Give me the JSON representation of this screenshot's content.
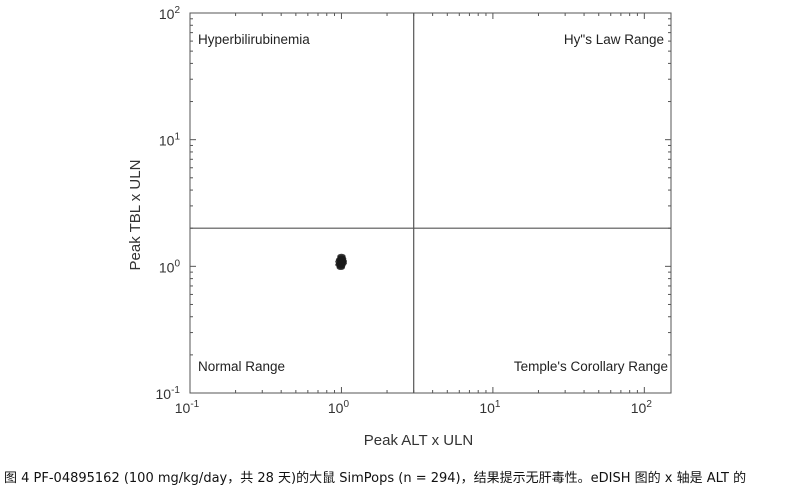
{
  "chart_data": {
    "type": "scatter",
    "xlabel": "Peak ALT x ULN",
    "ylabel": "Peak TBL x ULN",
    "xscale": "log",
    "yscale": "log",
    "xlim": [
      0.1,
      150
    ],
    "ylim": [
      0.1,
      100
    ],
    "xticks": [
      {
        "value": 0.1,
        "base": "10",
        "exp": "-1"
      },
      {
        "value": 1,
        "base": "10",
        "exp": "0"
      },
      {
        "value": 10,
        "base": "10",
        "exp": "1"
      },
      {
        "value": 100,
        "base": "10",
        "exp": "2"
      }
    ],
    "yticks": [
      {
        "value": 0.1,
        "base": "10",
        "exp": "-1"
      },
      {
        "value": 1,
        "base": "10",
        "exp": "0"
      },
      {
        "value": 10,
        "base": "10",
        "exp": "1"
      },
      {
        "value": 100,
        "base": "10",
        "exp": "2"
      }
    ],
    "threshold_x": 3,
    "threshold_y": 2,
    "grid": false,
    "quadrant_labels": {
      "top_left": "Hyperbilirubinemia",
      "top_right": "Hy\"s Law Range",
      "bottom_left": "Normal Range",
      "bottom_right": "Temple's Corollary Range"
    },
    "points": [
      {
        "x": 1.0,
        "y": 1.02
      },
      {
        "x": 0.98,
        "y": 1.05
      },
      {
        "x": 1.01,
        "y": 1.08
      },
      {
        "x": 0.99,
        "y": 1.11
      },
      {
        "x": 1.0,
        "y": 1.14
      },
      {
        "x": 0.97,
        "y": 1.09
      },
      {
        "x": 1.02,
        "y": 1.06
      },
      {
        "x": 0.99,
        "y": 1.0
      },
      {
        "x": 1.0,
        "y": 1.17
      },
      {
        "x": 1.01,
        "y": 1.12
      },
      {
        "x": 0.98,
        "y": 1.13
      },
      {
        "x": 1.0,
        "y": 1.04
      },
      {
        "x": 1.02,
        "y": 1.1
      },
      {
        "x": 0.99,
        "y": 0.98
      },
      {
        "x": 1.0,
        "y": 1.2
      },
      {
        "x": 0.97,
        "y": 1.03
      },
      {
        "x": 1.01,
        "y": 1.15
      },
      {
        "x": 1.0,
        "y": 1.07
      }
    ],
    "marker_color": "#1a1a1a"
  },
  "caption": "图 4 PF-04895162 (100 mg/kg/day，共 28 天)的大鼠 SimPops (n = 294)，结果提示无肝毒性。eDISH 图的 x 轴是 ALT 的"
}
